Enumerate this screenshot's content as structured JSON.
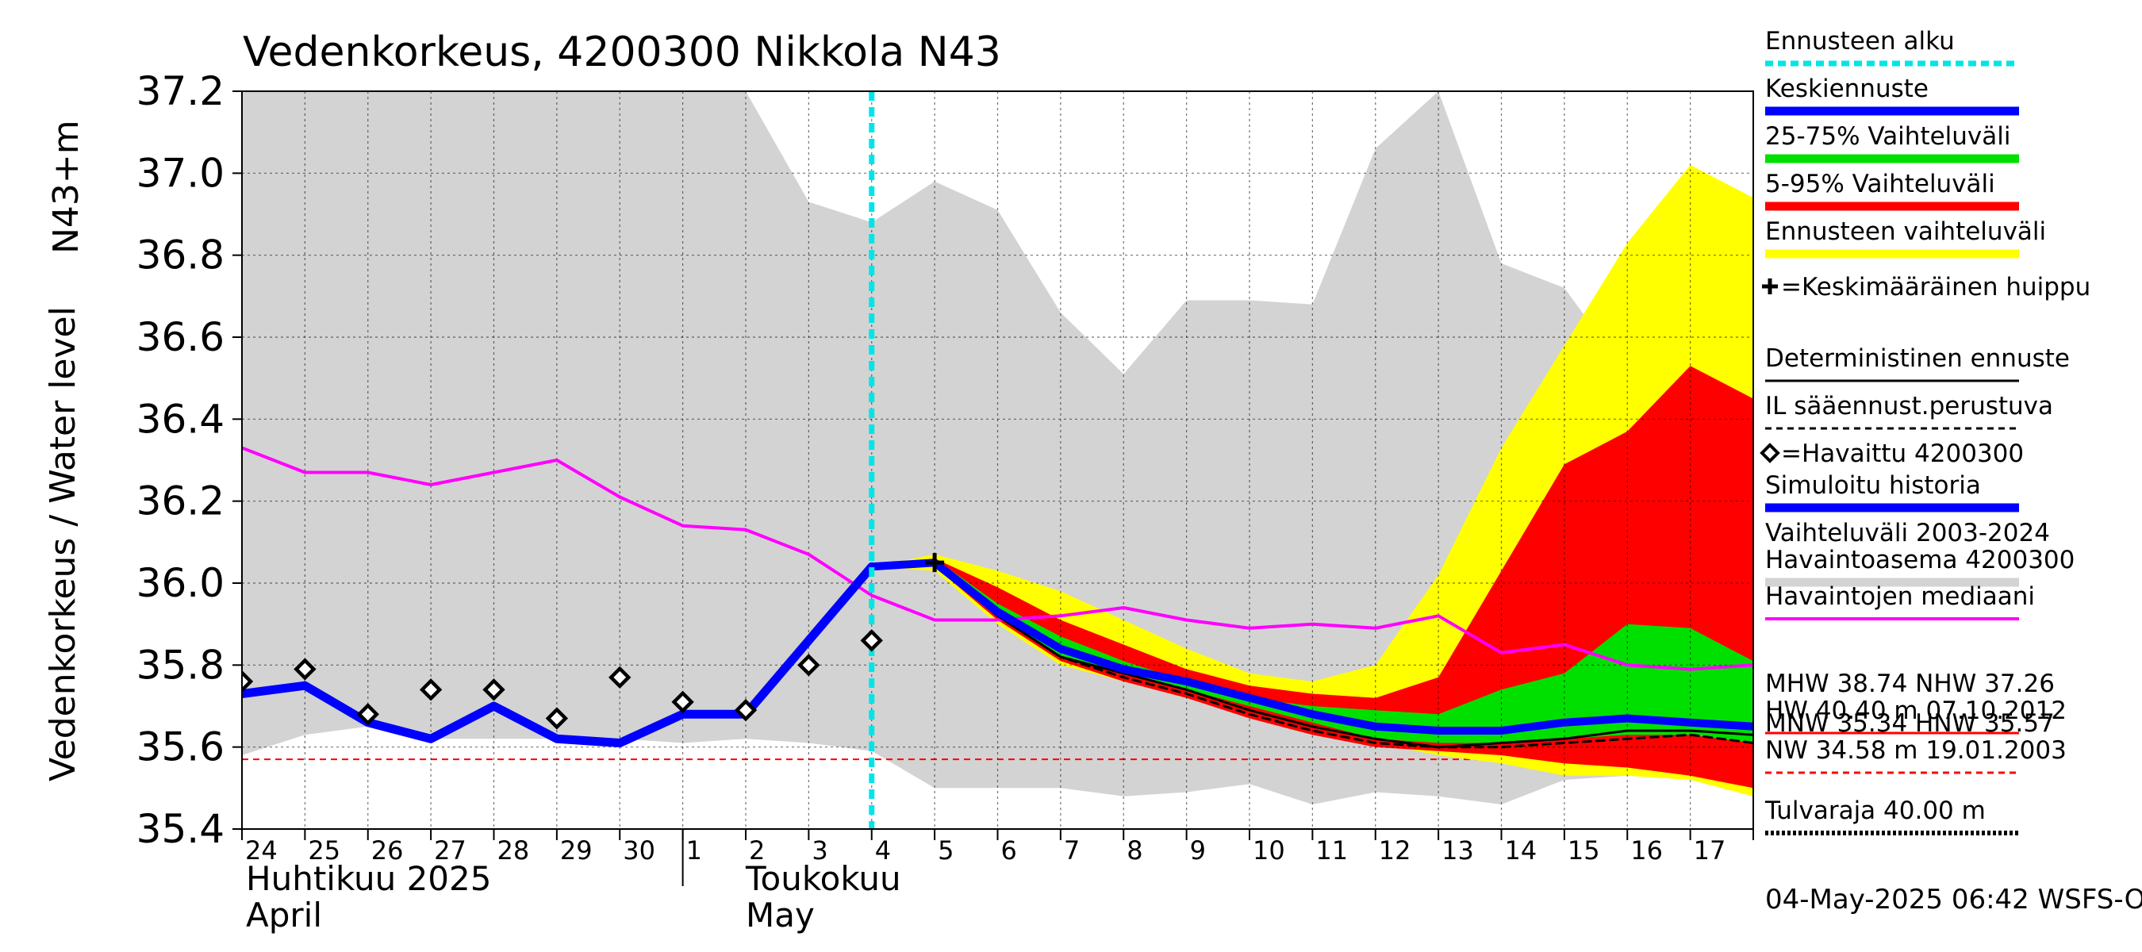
{
  "title": "Vedenkorkeus, 4200300 Nikkola N43",
  "ylabel_main": "Vedenkorkeus / Water level",
  "ylabel_unit": "N43+m",
  "footer": "04-May-2025 06:42 WSFS-O",
  "x_month_labels": [
    {
      "label": "Huhtikuu  2025",
      "sublabel": "April"
    },
    {
      "label": "Toukokuu",
      "sublabel": "May"
    }
  ],
  "legend": [
    {
      "label": "Ennusteen alku",
      "color": "#00e5e5",
      "style": "dotted-thick"
    },
    {
      "label": "Keskiennuste",
      "color": "#0000ff",
      "style": "solid-thick"
    },
    {
      "label": "25-75% Vaihteluväli",
      "color": "#00e000",
      "style": "solid-thick"
    },
    {
      "label": "5-95% Vaihteluväli",
      "color": "#ff0000",
      "style": "solid-thick"
    },
    {
      "label": "Ennusteen vaihteluväli",
      "color": "#ffff00",
      "style": "solid-thick"
    },
    {
      "label": "=Keskimääräinen huippu",
      "color": "#000000",
      "style": "marker-plus"
    },
    {
      "label": "Deterministinen ennuste",
      "color": "#000000",
      "style": "solid-thin"
    },
    {
      "label": "IL sääennust.perustuva",
      "color": "#000000",
      "style": "dashed"
    },
    {
      "label": "=Havaittu 4200300",
      "color": "#000000",
      "style": "marker-diamond"
    },
    {
      "label": "Simuloitu historia",
      "color": "#0000ff",
      "style": "solid-thick"
    },
    {
      "label": "Vaihteluväli 2003-2024\n Havaintoasema 4200300",
      "color": "#d3d3d3",
      "style": "solid-thick"
    },
    {
      "label": "Havaintojen mediaani",
      "color": "#ff00ff",
      "style": "solid-medium"
    },
    {
      "label": "MHW  38.74 NHW  37.26\nHW  40.40 m 07.10.2012",
      "color": "#ff0000",
      "style": "solid-thin"
    },
    {
      "label": "MNW  35.34 HNW  35.57\nNW  34.58 m 19.01.2003",
      "color": "#ff0000",
      "style": "dashed"
    },
    {
      "label": "Tulvaraja 40.00 m",
      "color": "#000000",
      "style": "dotted-thick"
    }
  ],
  "chart_data": {
    "type": "line",
    "x_day_labels": [
      "24",
      "25",
      "26",
      "27",
      "28",
      "29",
      "30",
      "1",
      "2",
      "3",
      "4",
      "5",
      "6",
      "7",
      "8",
      "9",
      "10",
      "11",
      "12",
      "13",
      "14",
      "15",
      "16",
      "17"
    ],
    "ylim": [
      35.4,
      37.2
    ],
    "yticks": [
      35.4,
      35.6,
      35.8,
      36.0,
      36.2,
      36.4,
      36.6,
      36.8,
      37.0,
      37.2
    ],
    "xlim_days": [
      0,
      24
    ],
    "forecast_start_day": 10.0,
    "nw_line": 35.57,
    "grid": true,
    "historical_range": {
      "x": [
        0,
        1,
        2,
        3,
        4,
        5,
        6,
        7,
        8,
        9,
        10,
        11,
        12,
        13,
        14,
        15,
        16,
        17,
        18,
        19,
        20,
        21,
        22,
        23,
        24
      ],
      "lo": [
        35.58,
        35.63,
        35.65,
        35.62,
        35.62,
        35.62,
        35.62,
        35.61,
        35.62,
        35.61,
        35.59,
        35.5,
        35.5,
        35.5,
        35.48,
        35.49,
        35.51,
        35.46,
        35.49,
        35.48,
        35.46,
        35.52,
        35.53,
        35.52,
        35.52
      ],
      "hi": [
        37.2,
        37.2,
        37.2,
        37.2,
        37.2,
        37.2,
        37.2,
        37.2,
        37.2,
        36.93,
        36.88,
        36.98,
        36.91,
        36.66,
        36.51,
        36.69,
        36.69,
        36.68,
        37.06,
        37.2,
        36.78,
        36.72,
        36.51,
        36.56,
        36.52
      ]
    },
    "forecast_range": {
      "x": [
        10.0,
        11,
        12,
        13,
        14,
        15,
        16,
        17,
        18,
        19,
        20,
        21,
        22,
        23,
        24
      ],
      "lo": [
        36.04,
        36.03,
        35.9,
        35.8,
        35.76,
        35.72,
        35.68,
        35.64,
        35.61,
        35.58,
        35.56,
        35.53,
        35.53,
        35.52,
        35.48
      ],
      "hi": [
        36.04,
        36.07,
        36.03,
        35.98,
        35.91,
        35.84,
        35.78,
        35.76,
        35.8,
        36.02,
        36.33,
        36.58,
        36.83,
        37.02,
        36.94
      ]
    },
    "p5_95": {
      "x": [
        10.0,
        11,
        12,
        13,
        14,
        15,
        16,
        17,
        18,
        19,
        20,
        21,
        22,
        23,
        24
      ],
      "lo": [
        36.04,
        36.04,
        35.91,
        35.81,
        35.76,
        35.72,
        35.67,
        35.63,
        35.6,
        35.59,
        35.58,
        35.56,
        35.55,
        35.53,
        35.5
      ],
      "hi": [
        36.04,
        36.06,
        35.99,
        35.91,
        35.85,
        35.79,
        35.75,
        35.73,
        35.72,
        35.77,
        36.03,
        36.29,
        36.37,
        36.53,
        36.45
      ]
    },
    "p25_75": {
      "x": [
        10.0,
        11,
        12,
        13,
        14,
        15,
        16,
        17,
        18,
        19,
        20,
        21,
        22,
        23,
        24
      ],
      "lo": [
        36.04,
        36.05,
        35.92,
        35.82,
        35.78,
        35.74,
        35.7,
        35.66,
        35.62,
        35.61,
        35.61,
        35.62,
        35.63,
        35.63,
        35.61
      ],
      "hi": [
        36.04,
        36.06,
        35.95,
        35.87,
        35.81,
        35.76,
        35.72,
        35.7,
        35.69,
        35.68,
        35.74,
        35.78,
        35.9,
        35.89,
        35.81
      ]
    },
    "median_forecast": {
      "x": [
        10.0,
        11,
        12,
        13,
        14,
        15,
        16,
        17,
        18,
        19,
        20,
        21,
        22,
        23,
        24
      ],
      "y": [
        36.04,
        36.05,
        35.93,
        35.84,
        35.79,
        35.76,
        35.72,
        35.68,
        35.65,
        35.64,
        35.64,
        35.66,
        35.67,
        35.66,
        35.65
      ]
    },
    "deterministic": {
      "x": [
        10.0,
        11,
        12,
        13,
        14,
        15,
        16,
        17,
        18,
        19,
        20,
        21,
        22,
        23,
        24
      ],
      "y": [
        36.04,
        36.05,
        35.92,
        35.82,
        35.78,
        35.74,
        35.69,
        35.65,
        35.62,
        35.6,
        35.61,
        35.62,
        35.64,
        35.64,
        35.63
      ]
    },
    "il_forecast": {
      "x": [
        10.0,
        11,
        12,
        13,
        14,
        15,
        16,
        17,
        18,
        19,
        20,
        21,
        22,
        23,
        24
      ],
      "y": [
        36.04,
        36.05,
        35.92,
        35.82,
        35.77,
        35.73,
        35.68,
        35.64,
        35.61,
        35.6,
        35.6,
        35.61,
        35.62,
        35.63,
        35.61
      ]
    },
    "mean_peak": {
      "x": 11.0,
      "y": 36.05
    },
    "simulated_history": {
      "x": [
        0,
        1,
        2,
        3,
        4,
        5,
        6,
        7,
        8,
        9,
        10.0
      ],
      "y": [
        35.73,
        35.75,
        35.66,
        35.62,
        35.7,
        35.62,
        35.61,
        35.68,
        35.68,
        35.86,
        36.04
      ]
    },
    "observed": {
      "x": [
        0,
        1,
        2,
        3,
        4,
        5,
        6,
        7,
        8,
        9,
        10
      ],
      "y": [
        35.76,
        35.79,
        35.68,
        35.74,
        35.74,
        35.67,
        35.77,
        35.71,
        35.69,
        35.8,
        35.86
      ]
    },
    "median_observed": {
      "x": [
        0,
        1,
        2,
        3,
        4,
        5,
        6,
        7,
        8,
        9,
        10,
        11,
        12,
        13,
        14,
        15,
        16,
        17,
        18,
        19,
        20,
        21,
        22,
        23,
        24
      ],
      "y": [
        36.33,
        36.27,
        36.27,
        36.24,
        36.27,
        36.3,
        36.21,
        36.14,
        36.13,
        36.07,
        35.97,
        35.91,
        35.91,
        35.92,
        35.94,
        35.91,
        35.89,
        35.9,
        35.89,
        35.92,
        35.83,
        35.85,
        35.8,
        35.79,
        35.8
      ]
    }
  }
}
